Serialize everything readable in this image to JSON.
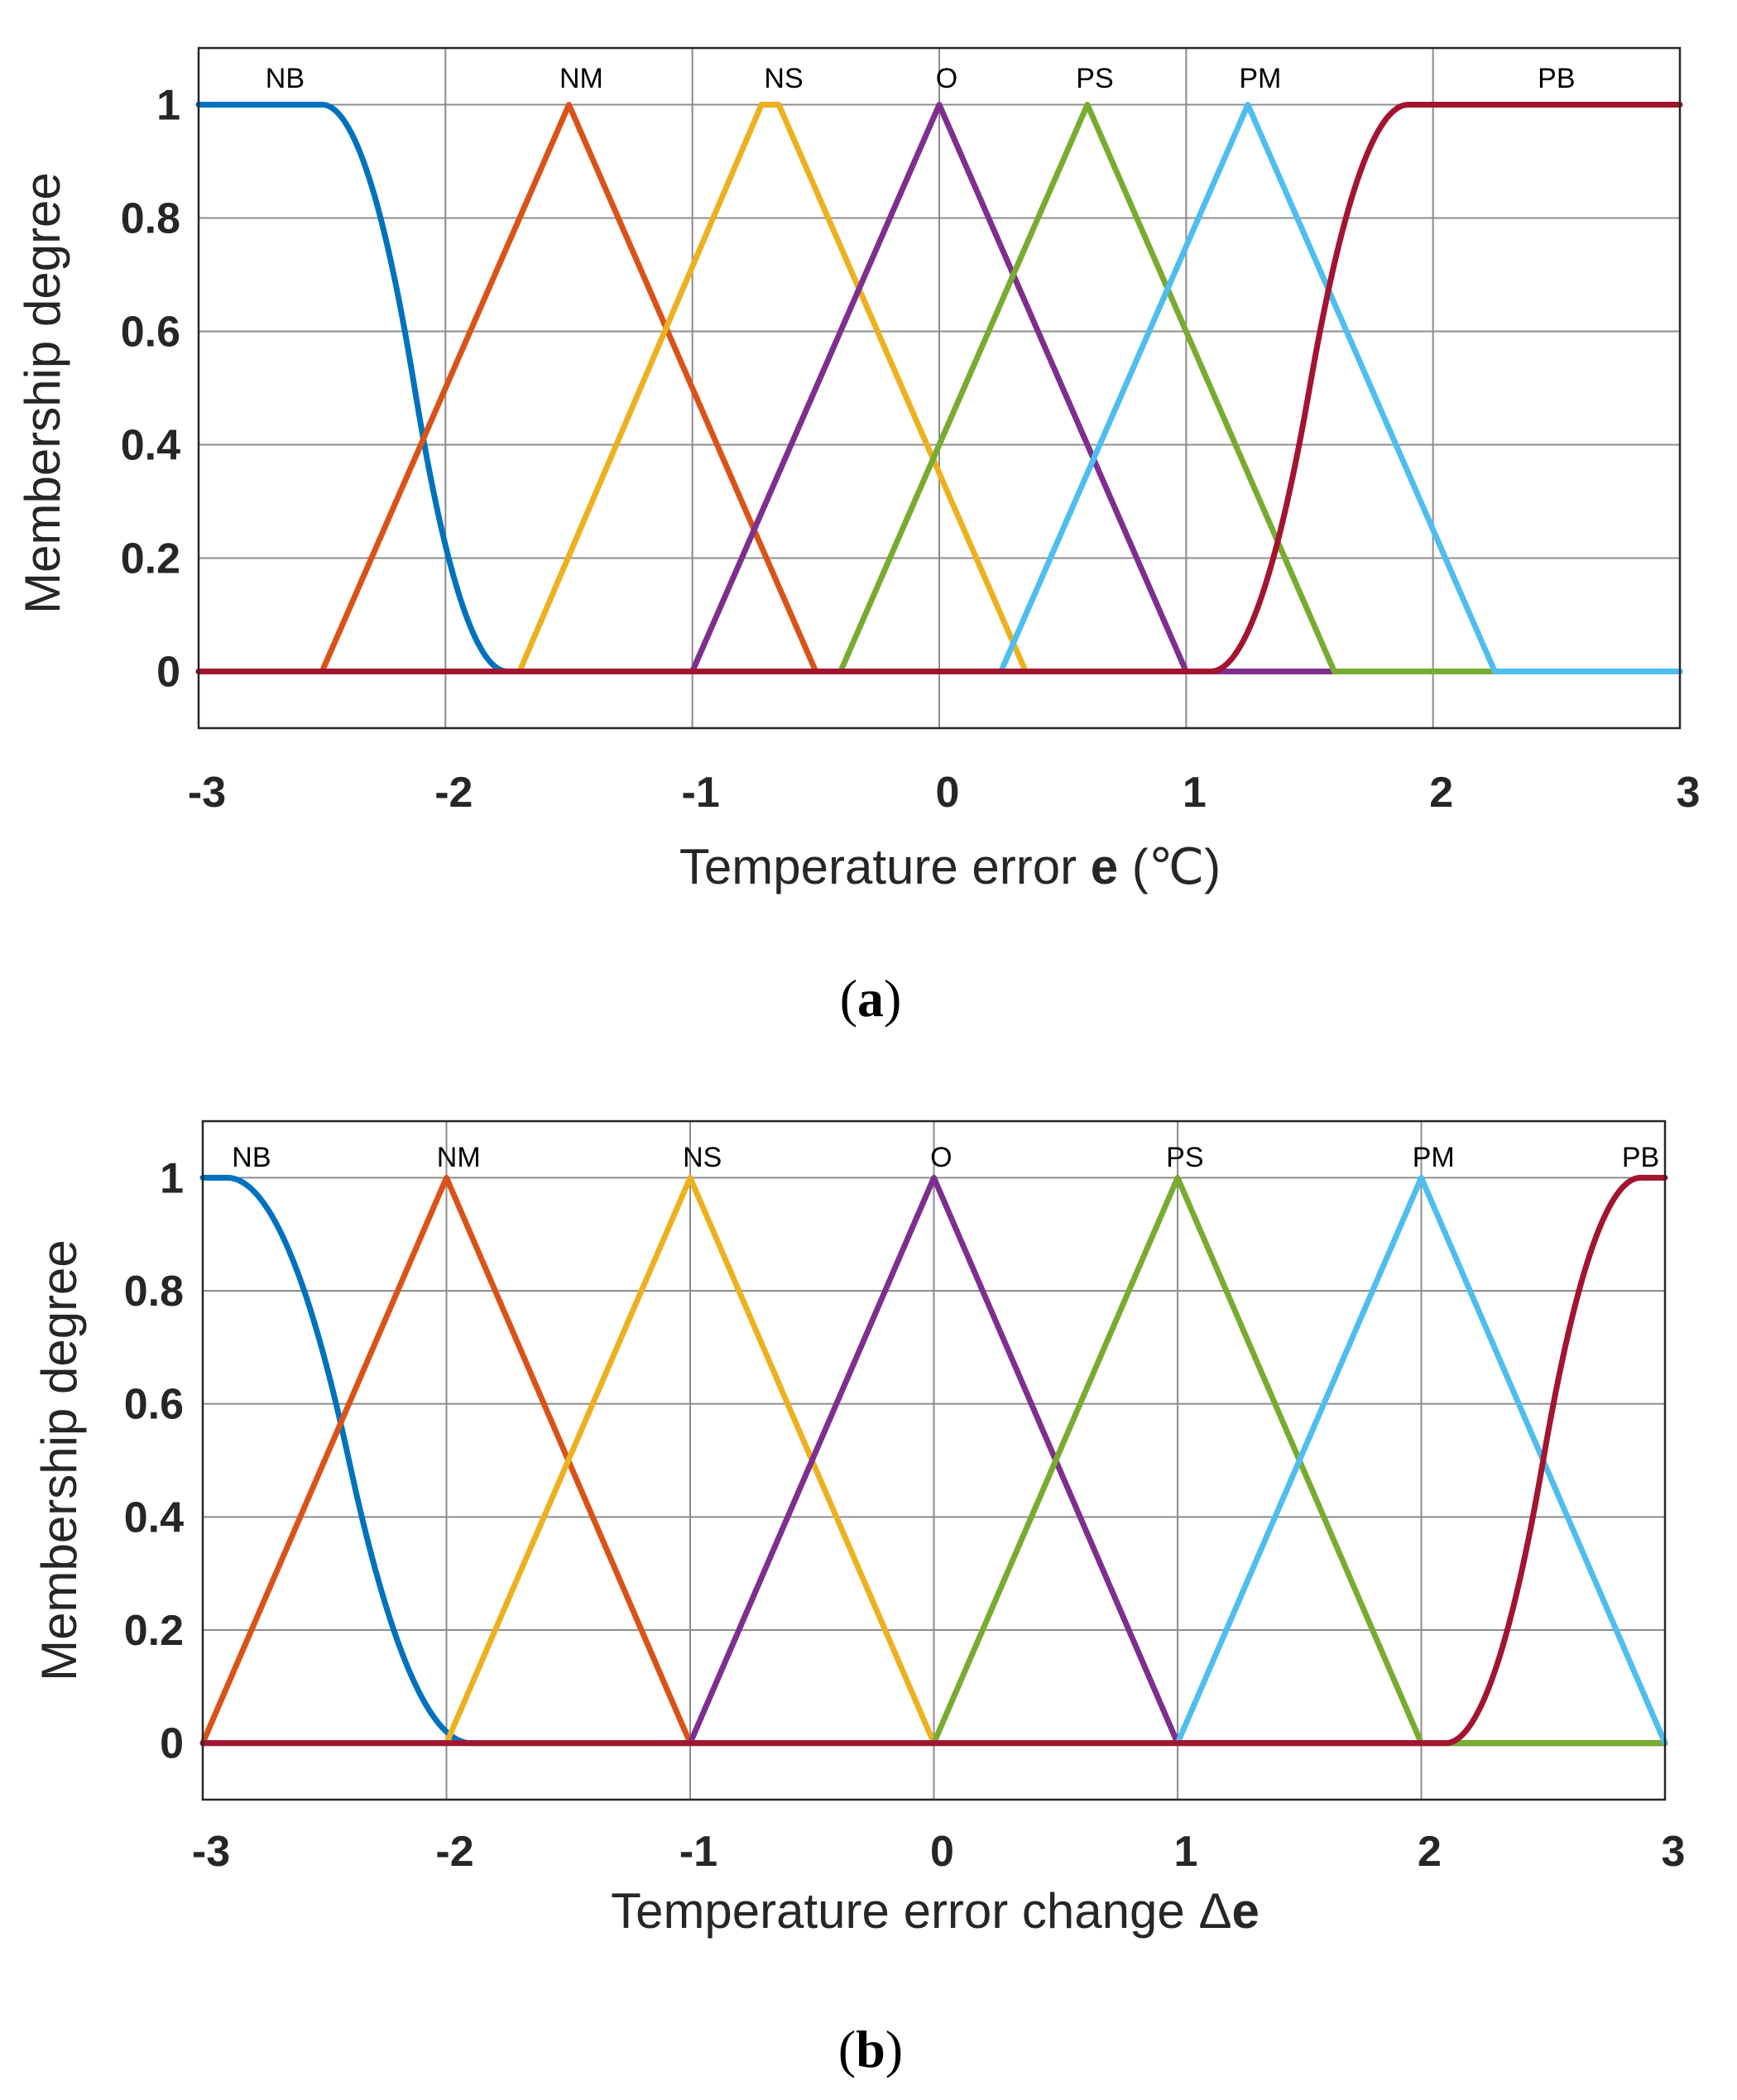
{
  "colors": {
    "NB": "#0072BD",
    "NM": "#D95319",
    "NS": "#EDB120",
    "O": "#7E2F8E",
    "PS": "#77AC30",
    "PM": "#4DBEEE",
    "PB": "#A2142F",
    "grid": "#8c8c8c",
    "axis": "#262626"
  },
  "chart_data": [
    {
      "type": "line",
      "panel_label": "a",
      "title": "",
      "xlabel_main": "Temperature error ",
      "xlabel_bold": "e",
      "xlabel_unit": " (℃)",
      "ylabel": "Membership degree",
      "xlim": [
        -3,
        3
      ],
      "ylim": [
        -0.1,
        1.1
      ],
      "xticks": [
        "-3",
        "-2",
        "-1",
        "0",
        "1",
        "2",
        "3"
      ],
      "yticks": [
        "0",
        "0.2",
        "0.4",
        "0.6",
        "0.8",
        "1"
      ],
      "grid": true,
      "series": [
        {
          "name": "NB",
          "shape": "zmf",
          "params": [
            -2.5,
            -1.75
          ]
        },
        {
          "name": "NM",
          "shape": "trimf",
          "params": [
            -2.5,
            -1.5,
            -0.5
          ]
        },
        {
          "name": "NS",
          "shape": "trapmf",
          "params": [
            -1.7,
            -0.72,
            -0.65,
            0.35
          ]
        },
        {
          "name": "O",
          "shape": "trimf",
          "params": [
            -1,
            0,
            1
          ]
        },
        {
          "name": "PS",
          "shape": "trimf",
          "params": [
            -0.4,
            0.6,
            1.6
          ]
        },
        {
          "name": "PM",
          "shape": "trimf",
          "params": [
            0.25,
            1.25,
            2.25
          ]
        },
        {
          "name": "PB",
          "shape": "smf",
          "params": [
            1.1,
            1.9
          ]
        }
      ],
      "mf_labels": [
        {
          "name": "NB",
          "x": -2.65
        },
        {
          "name": "NM",
          "x": -1.45
        },
        {
          "name": "NS",
          "x": -0.63
        },
        {
          "name": "O",
          "x": 0.03
        },
        {
          "name": "PS",
          "x": 0.63
        },
        {
          "name": "PM",
          "x": 1.3
        },
        {
          "name": "PB",
          "x": 2.5
        }
      ]
    },
    {
      "type": "line",
      "panel_label": "b",
      "title": "",
      "xlabel_main": "Temperature error change ",
      "xlabel_delta": "Δ",
      "xlabel_bold": "e",
      "ylabel": "Membership degree",
      "xlim": [
        -3,
        3
      ],
      "ylim": [
        -0.1,
        1.1
      ],
      "xticks": [
        "-3",
        "-2",
        "-1",
        "0",
        "1",
        "2",
        "3"
      ],
      "yticks": [
        "0",
        "0.2",
        "0.4",
        "0.6",
        "0.8",
        "1"
      ],
      "grid": true,
      "series": [
        {
          "name": "NB",
          "shape": "zmf",
          "params": [
            -2.9,
            -1.9
          ]
        },
        {
          "name": "NM",
          "shape": "trimf",
          "params": [
            -3,
            -2,
            -1
          ]
        },
        {
          "name": "NS",
          "shape": "trimf",
          "params": [
            -2,
            -1,
            0
          ]
        },
        {
          "name": "O",
          "shape": "trimf",
          "params": [
            -1,
            0,
            1
          ]
        },
        {
          "name": "PS",
          "shape": "trimf",
          "params": [
            0,
            1,
            2
          ]
        },
        {
          "name": "PM",
          "shape": "trimf",
          "params": [
            1,
            2,
            3
          ]
        },
        {
          "name": "PB",
          "shape": "smf",
          "params": [
            2.1,
            2.9
          ]
        }
      ],
      "mf_labels": [
        {
          "name": "NB",
          "x": -2.8
        },
        {
          "name": "NM",
          "x": -1.95
        },
        {
          "name": "NS",
          "x": -0.95
        },
        {
          "name": "O",
          "x": 0.03
        },
        {
          "name": "PS",
          "x": 1.03
        },
        {
          "name": "PM",
          "x": 2.05
        },
        {
          "name": "PB",
          "x": 2.9
        }
      ]
    }
  ]
}
